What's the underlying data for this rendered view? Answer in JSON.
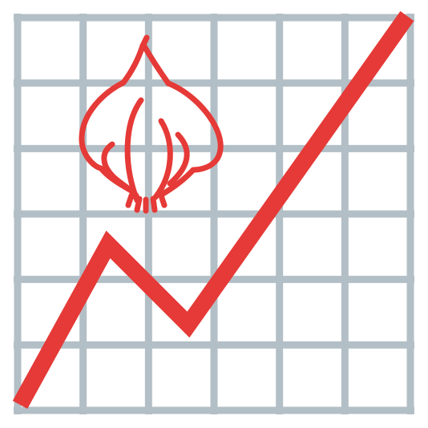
{
  "illustration": {
    "icon": "garlic-price-chart-icon",
    "subject": "garlic-bulb-icon",
    "colors": {
      "background": "#ffffff",
      "grid": "#b3bfc6",
      "trend_line": "#e53a37",
      "garlic": "#e53a37"
    },
    "grid": true,
    "grid_divisions": 6
  }
}
